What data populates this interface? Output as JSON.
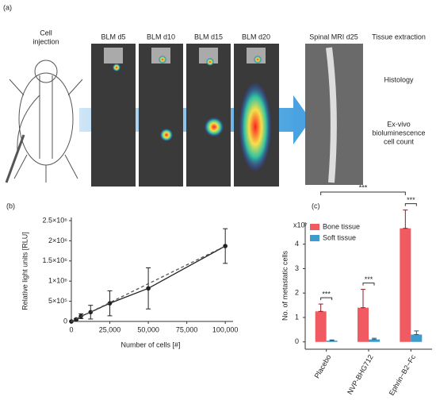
{
  "panel_a": {
    "label": "(a)",
    "cell_injection": [
      "Cell",
      "injection"
    ],
    "timepoints": [
      "BLM d5",
      "BLM d10",
      "BLM d15",
      "BLM d20"
    ],
    "mri": "Spinal MRI d25",
    "steps": [
      [
        "Tissue extraction"
      ],
      [
        "Histology"
      ],
      [
        "Ex-vivo",
        "bioluminescence",
        "cell count"
      ]
    ]
  },
  "chart_data": [
    {
      "type": "line",
      "panel_label": "(b)",
      "xlabel": "Number of cells [#]",
      "ylabel": "Relative light units [RLU]",
      "x": [
        0,
        3125,
        6250,
        12500,
        25000,
        50000,
        100000
      ],
      "series": [
        {
          "color": "#222222",
          "values": [
            0,
            50000,
            130000,
            230000,
            450000,
            820000,
            1870000
          ],
          "errors": [
            0,
            20000,
            60000,
            170000,
            310000,
            510000,
            430000
          ]
        },
        {
          "color": "#555555",
          "dash": true,
          "x": [
            0,
            100000
          ],
          "values": [
            0,
            1870000
          ]
        }
      ],
      "xlim": [
        0,
        103000
      ],
      "ylim": [
        0,
        2500000
      ],
      "xticks": [
        0,
        {
          "value": 25000,
          "label": "25,000"
        },
        {
          "value": 50000,
          "label": "50,000"
        },
        {
          "value": 75000,
          "label": "75,000"
        },
        {
          "value": 100000,
          "label": "100,000"
        }
      ],
      "yticks": [
        0,
        {
          "value": 500000,
          "label": "5×10⁵"
        },
        {
          "value": 1000000,
          "label": "1×10⁶"
        },
        {
          "value": 1500000,
          "label": "1.5×10⁶"
        },
        {
          "value": 2000000,
          "label": "2×10⁶"
        },
        {
          "value": 2500000,
          "label": "2.5×10⁶"
        }
      ]
    },
    {
      "type": "bar",
      "panel_label": "(c)",
      "ylabel": "No. of metastatic cells",
      "y_unit": "x10⁷",
      "categories": [
        "Placebo",
        "NVP-BHG712",
        "Ephrin−B2−Fc"
      ],
      "series": [
        {
          "name": "Bone tissue",
          "color": "#f15a60",
          "values": [
            1.25,
            1.4,
            4.65
          ],
          "errors": [
            0.3,
            0.75,
            0.75
          ]
        },
        {
          "name": "Soft tissue",
          "color": "#3d9ccc",
          "values": [
            0.05,
            0.1,
            0.3
          ],
          "errors": [
            0.03,
            0.05,
            0.15
          ]
        }
      ],
      "ylim": [
        -0.3,
        4.9
      ],
      "yticks": [
        0,
        1,
        2,
        3,
        4
      ],
      "legend": "upper left",
      "significance": [
        "***",
        "***",
        "***",
        "***"
      ]
    }
  ]
}
